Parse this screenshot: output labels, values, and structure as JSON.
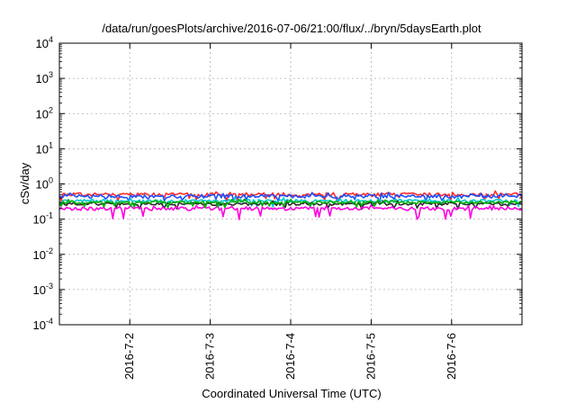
{
  "chart_data": {
    "type": "line",
    "title": "/data/run/goesPlots/archive/2016-07-06/21:00/flux/../bryn/5daysEarth.plot",
    "xlabel": "Coordinated Universal Time (UTC)",
    "ylabel": "cSv/day",
    "y_scale": "log",
    "ylim": [
      0.0001,
      10000
    ],
    "xlim": [
      "2016-07-01T03:00",
      "2016-07-06T21:00"
    ],
    "grid": true,
    "y_ticks": [
      {
        "value": 0.0001,
        "base": "10",
        "exp": "-4"
      },
      {
        "value": 0.001,
        "base": "10",
        "exp": "-3"
      },
      {
        "value": 0.01,
        "base": "10",
        "exp": "-2"
      },
      {
        "value": 0.1,
        "base": "10",
        "exp": "-1"
      },
      {
        "value": 1,
        "base": "10",
        "exp": "0"
      },
      {
        "value": 10,
        "base": "10",
        "exp": "1"
      },
      {
        "value": 100,
        "base": "10",
        "exp": "2"
      },
      {
        "value": 1000,
        "base": "10",
        "exp": "3"
      },
      {
        "value": 10000,
        "base": "10",
        "exp": "4"
      }
    ],
    "x_ticks": [
      {
        "value": "2016-07-02T00:00",
        "label": "2016-7-2"
      },
      {
        "value": "2016-07-03T00:00",
        "label": "2016-7-3"
      },
      {
        "value": "2016-07-04T00:00",
        "label": "2016-7-4"
      },
      {
        "value": "2016-07-05T00:00",
        "label": "2016-7-5"
      },
      {
        "value": "2016-07-06T00:00",
        "label": "2016-7-6"
      }
    ],
    "series": [
      {
        "color": "#ff2a2a",
        "base": 0.5,
        "spread": 0.12
      },
      {
        "color": "#1f4fff",
        "base": 0.45,
        "spread": 0.12
      },
      {
        "color": "#00c8d2",
        "base": 0.33,
        "spread": 0.1
      },
      {
        "color": "#2a2a2a",
        "base": 0.27,
        "spread": 0.09
      },
      {
        "color": "#ff00e0",
        "base": 0.2,
        "spread": 0.12
      },
      {
        "color": "#00b000",
        "base": 0.3,
        "spread": 0.08
      }
    ]
  }
}
